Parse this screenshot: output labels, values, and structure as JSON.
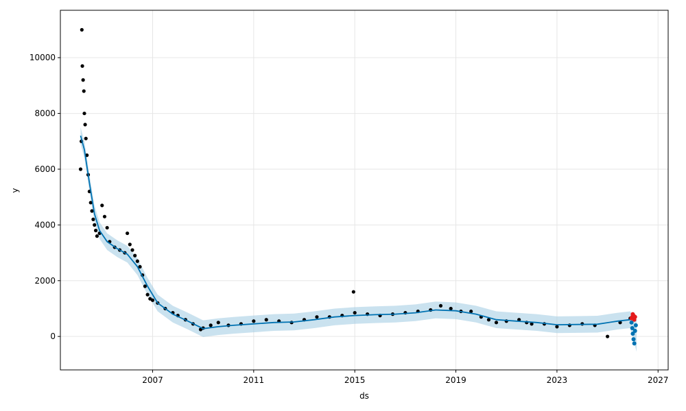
{
  "chart_data": {
    "type": "scatter",
    "xlabel": "ds",
    "ylabel": "y",
    "xlim": [
      2003.35,
      2027.4
    ],
    "ylim": [
      -1200,
      11700
    ],
    "x_ticks": [
      2007,
      2011,
      2015,
      2019,
      2023,
      2027
    ],
    "y_ticks": [
      0,
      2000,
      4000,
      6000,
      8000,
      10000
    ],
    "grid": true,
    "colors": {
      "observed": "#000000",
      "forecast": "#0072B2",
      "interval": "#9ecae1",
      "test": "#e41a1c"
    },
    "series": [
      {
        "kind": "observed-points",
        "x": [
          2004.15,
          2004.18,
          2004.2,
          2004.22,
          2004.25,
          2004.28,
          2004.3,
          2004.33,
          2004.36,
          2004.4,
          2004.45,
          2004.5,
          2004.55,
          2004.6,
          2004.65,
          2004.7,
          2004.75,
          2004.8,
          2004.9,
          2005.0,
          2005.1,
          2005.2,
          2005.3,
          2005.5,
          2005.7,
          2005.9,
          2006.0,
          2006.1,
          2006.2,
          2006.3,
          2006.4,
          2006.5,
          2006.6,
          2006.7,
          2006.8,
          2006.9,
          2007.0,
          2007.2,
          2007.5,
          2007.8,
          2008.0,
          2008.3,
          2008.6,
          2008.9,
          2009.0,
          2009.3,
          2009.6,
          2010.0,
          2010.5,
          2011.0,
          2011.5,
          2012.0,
          2012.5,
          2013.0,
          2013.5,
          2014.0,
          2014.5,
          2014.95,
          2015.0,
          2015.5,
          2016.0,
          2016.5,
          2017.0,
          2017.5,
          2018.0,
          2018.4,
          2018.8,
          2019.2,
          2019.6,
          2020.0,
          2020.3,
          2020.6,
          2021.0,
          2021.5,
          2021.8,
          2022.0,
          2022.5,
          2023.0,
          2023.5,
          2024.0,
          2024.5,
          2025.0,
          2025.5,
          2025.9
        ],
        "y": [
          6000,
          7000,
          11000,
          9700,
          9200,
          8800,
          8000,
          7600,
          7100,
          6500,
          5800,
          5200,
          4800,
          4500,
          4200,
          4000,
          3800,
          3600,
          3700,
          4700,
          4300,
          3900,
          3400,
          3200,
          3100,
          3000,
          3700,
          3300,
          3100,
          2900,
          2700,
          2500,
          2200,
          1800,
          1500,
          1350,
          1300,
          1200,
          1000,
          850,
          750,
          600,
          450,
          250,
          300,
          400,
          500,
          400,
          450,
          550,
          600,
          550,
          500,
          600,
          700,
          700,
          750,
          1600,
          850,
          800,
          750,
          800,
          850,
          900,
          950,
          1100,
          1000,
          900,
          900,
          700,
          600,
          500,
          550,
          600,
          500,
          450,
          450,
          350,
          400,
          450,
          400,
          0,
          500,
          650
        ]
      },
      {
        "kind": "forecast-line",
        "x": [
          2004.15,
          2004.3,
          2004.5,
          2004.7,
          2004.9,
          2005.2,
          2005.6,
          2006.0,
          2006.4,
          2006.8,
          2007.2,
          2007.8,
          2008.4,
          2009.0,
          2009.6,
          2010.2,
          2011.0,
          2011.8,
          2012.6,
          2013.4,
          2014.2,
          2015.0,
          2015.8,
          2016.6,
          2017.4,
          2018.2,
          2019.0,
          2019.8,
          2020.6,
          2021.4,
          2022.2,
          2023.0,
          2023.8,
          2024.6,
          2025.4,
          2025.9
        ],
        "y": [
          7200,
          6700,
          5500,
          4400,
          3800,
          3400,
          3150,
          2950,
          2500,
          1800,
          1200,
          800,
          550,
          280,
          350,
          400,
          450,
          500,
          520,
          600,
          700,
          750,
          780,
          800,
          850,
          950,
          920,
          800,
          600,
          550,
          500,
          420,
          430,
          440,
          550,
          600
        ]
      },
      {
        "kind": "uncertainty-band",
        "x": [
          2004.15,
          2004.3,
          2004.5,
          2004.7,
          2004.9,
          2005.2,
          2005.6,
          2006.0,
          2006.4,
          2006.8,
          2007.2,
          2007.8,
          2008.4,
          2009.0,
          2009.6,
          2010.2,
          2011.0,
          2011.8,
          2012.6,
          2013.4,
          2014.2,
          2015.0,
          2015.8,
          2016.6,
          2017.4,
          2018.2,
          2019.0,
          2019.8,
          2020.6,
          2021.4,
          2022.2,
          2023.0,
          2023.8,
          2024.6,
          2025.4,
          2025.9,
          2026.15
        ],
        "lower": [
          6900,
          6400,
          5200,
          4100,
          3500,
          3100,
          2850,
          2650,
          2200,
          1500,
          900,
          500,
          250,
          -20,
          50,
          100,
          150,
          200,
          220,
          300,
          400,
          450,
          480,
          500,
          550,
          650,
          620,
          500,
          300,
          250,
          200,
          120,
          130,
          140,
          250,
          300,
          -550
        ],
        "upper": [
          7500,
          7000,
          5800,
          4700,
          4100,
          3700,
          3450,
          3250,
          2800,
          2100,
          1500,
          1100,
          850,
          580,
          650,
          700,
          750,
          800,
          820,
          900,
          1000,
          1050,
          1080,
          1100,
          1150,
          1250,
          1220,
          1100,
          900,
          850,
          800,
          720,
          730,
          740,
          850,
          900,
          600
        ]
      },
      {
        "kind": "future-forecast-points",
        "x": [
          2025.95,
          2025.98,
          2026.0,
          2026.03,
          2026.06,
          2026.09,
          2026.12
        ],
        "y": [
          500,
          300,
          100,
          -100,
          -250,
          200,
          400
        ]
      },
      {
        "kind": "test-points",
        "x": [
          2025.95,
          2025.98,
          2026.0,
          2026.03,
          2026.06,
          2026.09
        ],
        "y": [
          650,
          700,
          800,
          750,
          600,
          700
        ]
      }
    ]
  }
}
